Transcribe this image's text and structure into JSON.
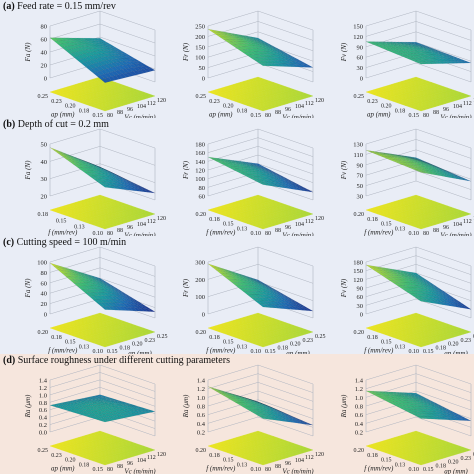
{
  "colors": {
    "band_bg": "#e9edf6",
    "band_bg_d": "#f6e6dd",
    "grid_line": "#aeb4c0",
    "axis_text": "#222222",
    "colormap": [
      "#2e1b6e",
      "#1b3f9a",
      "#1d6bb5",
      "#1a9a9e",
      "#3cbc74",
      "#a5d63a",
      "#f1e51d"
    ]
  },
  "chart_data": [
    {
      "panel": "a",
      "label": "(a)",
      "title": "Feed rate = 0.15 mm/rev",
      "charts": [
        {
          "type": "surface",
          "zlabel": "Fa (N)",
          "zticks": [
            "0",
            "20",
            "40",
            "60",
            "80"
          ],
          "xlabel": "ap (mm)",
          "xticks": [
            "0.25",
            "0.23",
            "0.20",
            "0.18",
            "0.15"
          ],
          "ylabel": "Vc (m/min)",
          "yticks": [
            "80",
            "88",
            "96",
            "104",
            "112",
            "120"
          ],
          "zlim": [
            0,
            80
          ],
          "corners_z": [
            62,
            22,
            38,
            18
          ],
          "floor": "contour"
        },
        {
          "type": "surface",
          "zlabel": "Fr (N)",
          "zticks": [
            "0",
            "50",
            "100",
            "150",
            "200",
            "250"
          ],
          "xlabel": "ap (mm)",
          "xticks": [
            "0.25",
            "0.23",
            "0.20",
            "0.18",
            "0.15"
          ],
          "ylabel": "Vc (m/min)",
          "yticks": [
            "80",
            "88",
            "96",
            "104",
            "112",
            "120"
          ],
          "zlim": [
            0,
            250
          ],
          "corners_z": [
            235,
            150,
            120,
            70
          ],
          "floor": "contour"
        },
        {
          "type": "surface",
          "zlabel": "Fv (N)",
          "zticks": [
            "0",
            "30",
            "60",
            "90",
            "120",
            "150"
          ],
          "xlabel": "ap (mm)",
          "xticks": [
            "0.25",
            "0.23",
            "0.20",
            "0.18",
            "0.15"
          ],
          "ylabel": "Vc (m/min)",
          "yticks": [
            "80",
            "88",
            "96",
            "104",
            "112",
            "120"
          ],
          "zlim": [
            0,
            150
          ],
          "corners_z": [
            105,
            95,
            60,
            55
          ],
          "floor": "contour"
        }
      ]
    },
    {
      "panel": "b",
      "label": "(b)",
      "title": "Depth of cut = 0.2 mm",
      "charts": [
        {
          "type": "surface",
          "zlabel": "Fa (N)",
          "zticks": [
            "20",
            "30",
            "40",
            "50"
          ],
          "xlabel": "f (mm/rev)",
          "xticks": [
            "0.18",
            "0.15",
            "0.13",
            "0.10"
          ],
          "ylabel": "Vc (m/min)",
          "yticks": [
            "80",
            "88",
            "96",
            "104",
            "112",
            "120"
          ],
          "zlim": [
            20,
            50
          ],
          "corners_z": [
            48,
            36,
            28,
            24
          ],
          "floor": "contour"
        },
        {
          "type": "surface",
          "zlabel": "Fr (N)",
          "zticks": [
            "60",
            "80",
            "100",
            "120",
            "140",
            "160",
            "180"
          ],
          "xlabel": "f (mm/rev)",
          "xticks": [
            "0.20",
            "0.18",
            "0.15",
            "0.13",
            "0.10"
          ],
          "ylabel": "Vc (m/min)",
          "yticks": [
            "80",
            "88",
            "96",
            "104",
            "112",
            "120"
          ],
          "zlim": [
            60,
            180
          ],
          "corners_z": [
            150,
            130,
            100,
            78
          ],
          "floor": "contour"
        },
        {
          "type": "surface",
          "zlabel": "Fv (N)",
          "zticks": [
            "30",
            "50",
            "70",
            "90",
            "110",
            "130"
          ],
          "xlabel": "f (mm/rev)",
          "xticks": [
            "0.20",
            "0.18",
            "0.15",
            "0.13",
            "0.10"
          ],
          "ylabel": "Vc (m/min)",
          "yticks": [
            "80",
            "88",
            "96",
            "104",
            "112",
            "120"
          ],
          "zlim": [
            30,
            130
          ],
          "corners_z": [
            118,
            112,
            75,
            66
          ],
          "floor": "contour"
        }
      ]
    },
    {
      "panel": "c",
      "label": "(c)",
      "title": "Cutting speed = 100 m/min",
      "charts": [
        {
          "type": "surface",
          "zlabel": "Fa (N)",
          "zticks": [
            "0",
            "20",
            "40",
            "60",
            "80",
            "100"
          ],
          "xlabel": "f (mm/rev)",
          "xticks": [
            "0.20",
            "0.18",
            "0.15",
            "0.13",
            "0.10"
          ],
          "ylabel": "ap (mm)",
          "yticks": [
            "0.15",
            "0.18",
            "0.20",
            "0.23",
            "0.25"
          ],
          "zlim": [
            0,
            100
          ],
          "corners_z": [
            98,
            45,
            40,
            12
          ],
          "floor": "contour"
        },
        {
          "type": "surface",
          "zlabel": "Fr (N)",
          "zticks": [
            "0",
            "100",
            "200",
            "300"
          ],
          "xlabel": "f (mm/rev)",
          "xticks": [
            "0.20",
            "0.18",
            "0.15",
            "0.13",
            "0.10"
          ],
          "ylabel": "ap (mm)",
          "yticks": [
            "0.15",
            "0.18",
            "0.20",
            "0.23",
            "0.25"
          ],
          "zlim": [
            0,
            300
          ],
          "corners_z": [
            290,
            150,
            110,
            40
          ],
          "floor": "contour"
        },
        {
          "type": "surface",
          "zlabel": "Fv (N)",
          "zticks": [
            "0",
            "30",
            "60",
            "90",
            "120",
            "150",
            "180"
          ],
          "xlabel": "f (mm/rev)",
          "xticks": [
            "0.20",
            "0.18",
            "0.15",
            "0.13",
            "0.10"
          ],
          "ylabel": "ap (mm)",
          "yticks": [
            "0.15",
            "0.18",
            "0.20",
            "0.23",
            "0.25"
          ],
          "zlim": [
            0,
            180
          ],
          "corners_z": [
            170,
            110,
            90,
            30
          ],
          "floor": "contour"
        }
      ]
    },
    {
      "panel": "d",
      "label": "(d)",
      "title": "Surface roughness under different cutting parameters",
      "charts": [
        {
          "type": "surface",
          "zlabel": "Ra (μm)",
          "zticks": [
            "0.0",
            "0.2",
            "0.4",
            "0.6",
            "0.8",
            "1.0",
            "1.2",
            "1.4"
          ],
          "xlabel": "ap (mm)",
          "xticks": [
            "0.25",
            "0.23",
            "0.20",
            "0.18",
            "0.15"
          ],
          "ylabel": "Vc (m/min)",
          "yticks": [
            "80",
            "88",
            "96",
            "104",
            "112",
            "120"
          ],
          "zlim": [
            0,
            1.4
          ],
          "corners_z": [
            0.72,
            0.78,
            0.6,
            0.66
          ],
          "floor": "contour"
        },
        {
          "type": "surface",
          "zlabel": "Ra (μm)",
          "zticks": [
            "0.2",
            "0.4",
            "0.6",
            "0.8",
            "1.0",
            "1.2",
            "1.4"
          ],
          "xlabel": "f (mm/rev)",
          "xticks": [
            "0.20",
            "0.18",
            "0.15",
            "0.13",
            "0.10"
          ],
          "ylabel": "Vc (m/min)",
          "yticks": [
            "80",
            "88",
            "96",
            "104",
            "112",
            "120"
          ],
          "zlim": [
            0.2,
            1.4
          ],
          "corners_z": [
            1.25,
            0.95,
            0.55,
            0.45
          ],
          "floor": "contour"
        },
        {
          "type": "surface",
          "zlabel": "Ra (μm)",
          "zticks": [
            "0.2",
            "0.4",
            "0.6",
            "0.8",
            "1.0",
            "1.2",
            "1.4"
          ],
          "xlabel": "f (mm/rev)",
          "xticks": [
            "0.20",
            "0.18",
            "0.15",
            "0.13",
            "0.10"
          ],
          "ylabel": "ap (mm)",
          "yticks": [
            "0.15",
            "0.18",
            "0.20",
            "0.23",
            "0.25"
          ],
          "zlim": [
            0.2,
            1.4
          ],
          "corners_z": [
            1.15,
            0.95,
            0.75,
            0.55
          ],
          "floor": "contour"
        }
      ]
    }
  ]
}
